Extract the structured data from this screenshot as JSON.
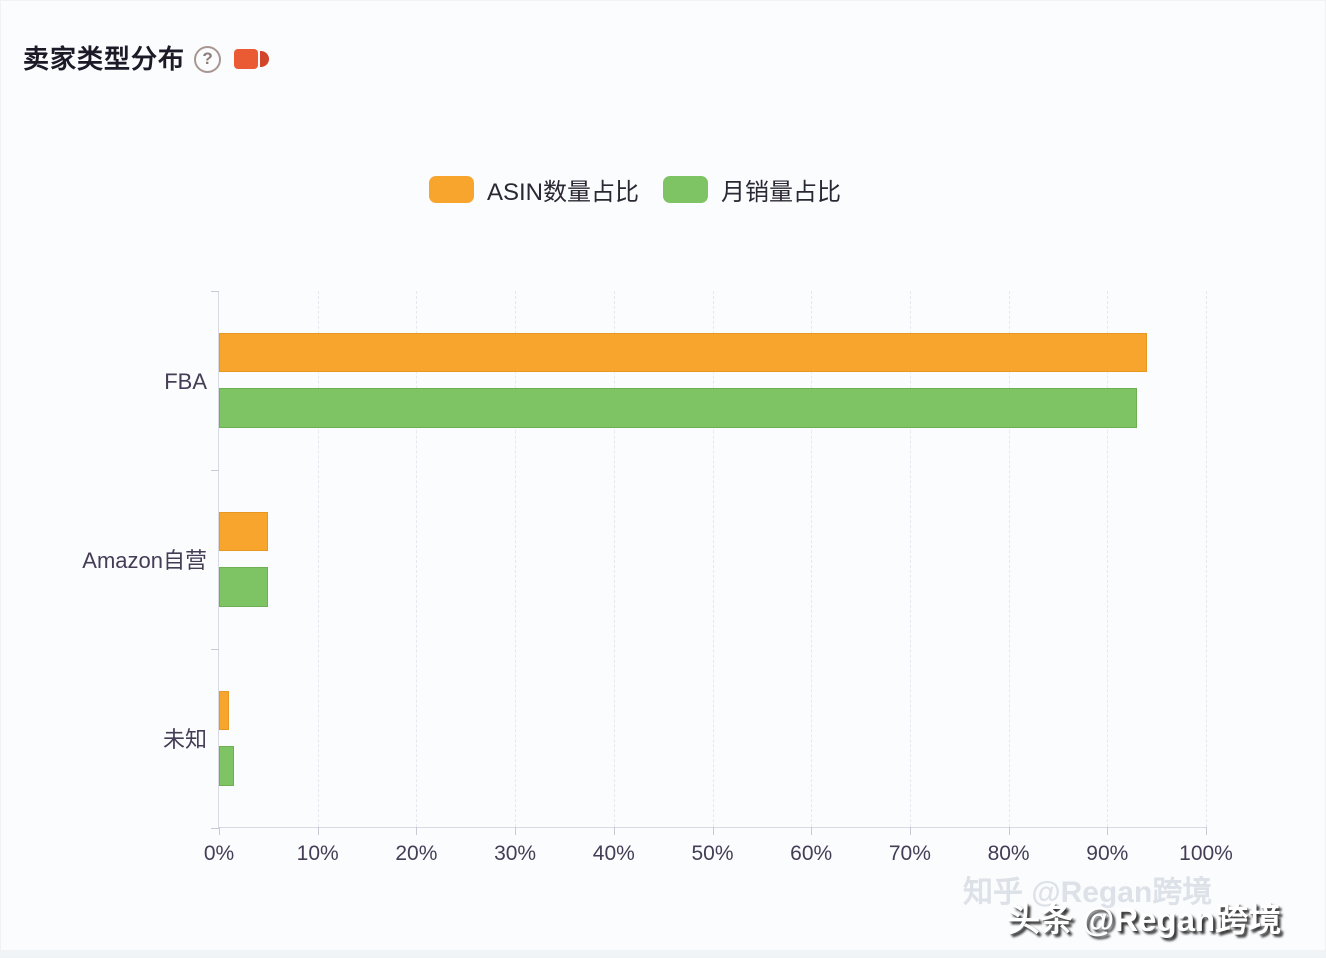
{
  "header": {
    "title": "卖家类型分布",
    "help_glyph": "?",
    "icons": [
      "question-circle-icon",
      "video-camera-icon"
    ],
    "camera_color": "#ea5b33"
  },
  "chart_data": {
    "type": "bar",
    "orientation": "horizontal",
    "title": "卖家类型分布",
    "categories": [
      "FBA",
      "Amazon自营",
      "未知"
    ],
    "series": [
      {
        "name": "ASIN数量占比",
        "color": "#f8a52d",
        "values": [
          94,
          5,
          1
        ]
      },
      {
        "name": "月销量占比",
        "color": "#7ec464",
        "values": [
          93,
          5,
          1.5
        ]
      }
    ],
    "xlim": [
      0,
      100
    ],
    "x_ticks": [
      "0%",
      "10%",
      "20%",
      "30%",
      "40%",
      "50%",
      "60%",
      "70%",
      "80%",
      "90%",
      "100%"
    ],
    "grid": "dashed-vertical",
    "legend_position": "top-center",
    "xlabel": "",
    "ylabel": ""
  },
  "watermarks": {
    "faint": "知乎 @Regan跨境",
    "solid": "头条 @Regan跨境"
  },
  "colors": {
    "orange": "#f8a52d",
    "green": "#7ec464",
    "title_text": "#1d1a28",
    "axis_text": "#443d55",
    "grid": "#e7e7ef",
    "axis_line": "#d9d9e3",
    "background": "#fbfcfe"
  }
}
